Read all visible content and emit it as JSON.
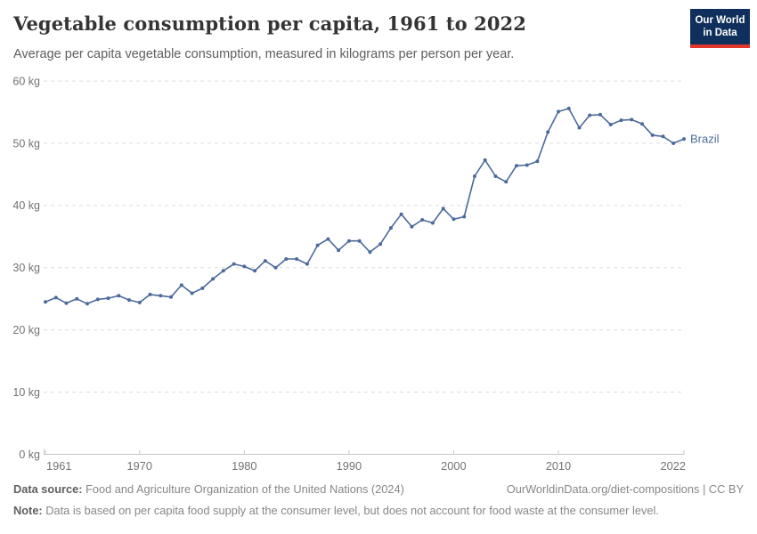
{
  "header": {
    "logo": {
      "line1": "Our World",
      "line2": "in Data",
      "bg_color": "#0f2f5c",
      "accent_color": "#e0362c"
    }
  },
  "chart_data": {
    "type": "line",
    "title": "Vegetable consumption per capita, 1961 to 2022",
    "subtitle": "Average per capita vegetable consumption, measured in kilograms per person per year.",
    "xlabel": "",
    "ylabel": "",
    "xlim": [
      1961,
      2022
    ],
    "ylim": [
      0,
      60
    ],
    "grid": "horizontal-dashed",
    "legend_position": "end-of-line-label",
    "x_ticks": [
      1961,
      1970,
      1980,
      1990,
      2000,
      2010,
      2022
    ],
    "x_tick_labels": [
      "1961",
      "1970",
      "1980",
      "1990",
      "2000",
      "2010",
      "2022"
    ],
    "y_ticks": [
      0,
      10,
      20,
      30,
      40,
      50,
      60
    ],
    "y_tick_labels": [
      "0 kg",
      "10 kg",
      "20 kg",
      "30 kg",
      "40 kg",
      "50 kg",
      "60 kg"
    ],
    "x": [
      1961,
      1962,
      1963,
      1964,
      1965,
      1966,
      1967,
      1968,
      1969,
      1970,
      1971,
      1972,
      1973,
      1974,
      1975,
      1976,
      1977,
      1978,
      1979,
      1980,
      1981,
      1982,
      1983,
      1984,
      1985,
      1986,
      1987,
      1988,
      1989,
      1990,
      1991,
      1992,
      1993,
      1994,
      1995,
      1996,
      1997,
      1998,
      1999,
      2000,
      2001,
      2002,
      2003,
      2004,
      2005,
      2006,
      2007,
      2008,
      2009,
      2010,
      2011,
      2012,
      2013,
      2014,
      2015,
      2016,
      2017,
      2018,
      2019,
      2020,
      2021,
      2022
    ],
    "series": [
      {
        "name": "Brazil",
        "color": "#4C6A9C",
        "unit": "kg",
        "values": [
          24.5,
          25.2,
          24.3,
          25.0,
          24.2,
          24.9,
          25.1,
          25.5,
          24.8,
          24.4,
          25.7,
          25.5,
          25.3,
          27.2,
          25.9,
          26.7,
          28.2,
          29.5,
          30.6,
          30.2,
          29.5,
          31.1,
          30.0,
          31.4,
          31.4,
          30.6,
          33.6,
          34.6,
          32.8,
          34.3,
          34.3,
          32.5,
          33.8,
          36.4,
          38.6,
          36.6,
          37.7,
          37.2,
          39.5,
          37.8,
          38.2,
          44.7,
          47.3,
          44.7,
          43.8,
          46.4,
          46.5,
          47.1,
          51.8,
          55.1,
          55.6,
          52.5,
          54.5,
          54.6,
          53.0,
          53.7,
          53.8,
          53.1,
          51.3,
          51.1,
          50.0,
          50.7
        ]
      }
    ],
    "grid_color": "#dcdcdc",
    "axis_color": "#c6c6c6",
    "tick_label_color": "#737373"
  },
  "footer": {
    "source_label": "Data source:",
    "source_text": " Food and Agriculture Organization of the United Nations (2024)",
    "link_text": "OurWorldinData.org/diet-compositions | CC BY",
    "note_label": "Note:",
    "note_text": " Data is based on per capita food supply at the consumer level, but does not account for food waste at the consumer level."
  }
}
